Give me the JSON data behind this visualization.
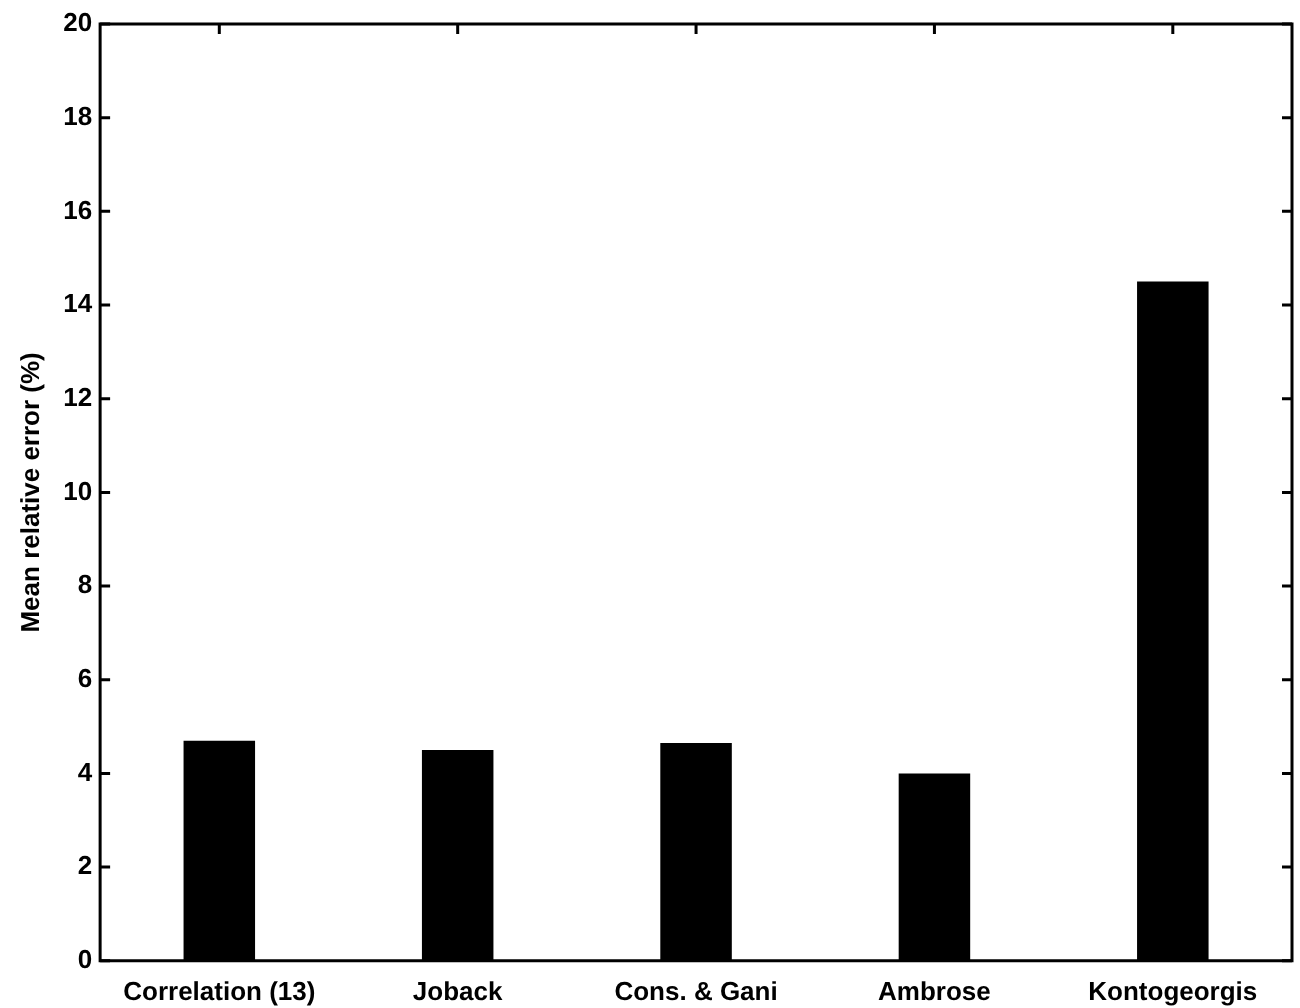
{
  "chart_data": {
    "type": "bar",
    "ylabel": "Mean relative error (%)",
    "categories": [
      "Correlation (13)",
      "Joback",
      "Cons. & Gani",
      "Ambrose",
      "Kontogeorgis"
    ],
    "values": [
      4.7,
      4.5,
      4.65,
      4.0,
      14.5
    ],
    "color": "#000000",
    "ylim": [
      0,
      20
    ],
    "yticks": [
      0,
      2,
      4,
      6,
      8,
      10,
      12,
      14,
      16,
      18,
      20
    ],
    "grid": false,
    "legend": false
  }
}
